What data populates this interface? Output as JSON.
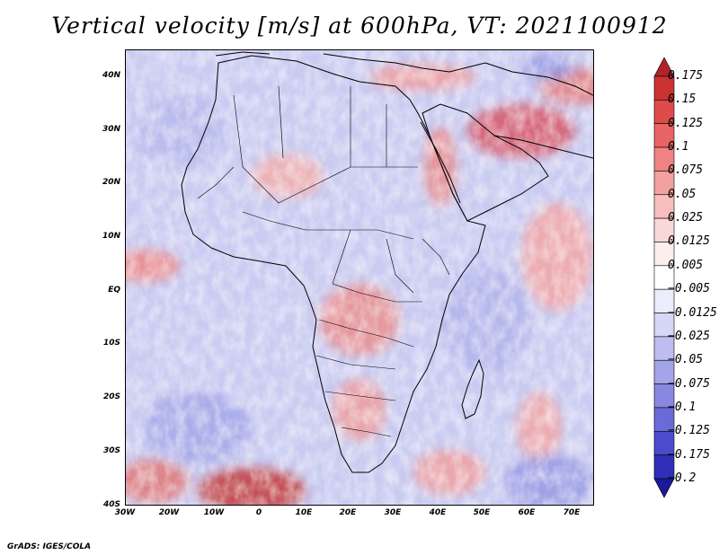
{
  "title": "Vertical velocity [m/s] at 600hPa, VT: 2021100912",
  "credit": "GrADS: IGES/COLA",
  "map": {
    "lon_range": [
      -30,
      75
    ],
    "lat_range": [
      -40,
      45
    ],
    "lat_ticks": [
      {
        "value": 40,
        "label": "40N"
      },
      {
        "value": 30,
        "label": "30N"
      },
      {
        "value": 20,
        "label": "20N"
      },
      {
        "value": 10,
        "label": "10N"
      },
      {
        "value": 0,
        "label": "EQ"
      },
      {
        "value": -10,
        "label": "10S"
      },
      {
        "value": -20,
        "label": "20S"
      },
      {
        "value": -30,
        "label": "30S"
      },
      {
        "value": -40,
        "label": "40S"
      }
    ],
    "lon_ticks": [
      {
        "value": -30,
        "label": "30W"
      },
      {
        "value": -20,
        "label": "20W"
      },
      {
        "value": -10,
        "label": "10W"
      },
      {
        "value": 0,
        "label": "0"
      },
      {
        "value": 10,
        "label": "10E"
      },
      {
        "value": 20,
        "label": "20E"
      },
      {
        "value": 30,
        "label": "30E"
      },
      {
        "value": 40,
        "label": "40E"
      },
      {
        "value": 50,
        "label": "50E"
      },
      {
        "value": 60,
        "label": "60E"
      },
      {
        "value": 70,
        "label": "70E"
      }
    ]
  },
  "colorbar": {
    "levels": [
      "0.175",
      "0.15",
      "0.125",
      "0.1",
      "0.075",
      "0.05",
      "0.025",
      "0.0125",
      "0.005",
      "−0.005",
      "−0.0125",
      "−0.025",
      "−0.05",
      "−0.075",
      "−0.1",
      "−0.125",
      "−0.175",
      "−0.2"
    ],
    "colors": [
      "#b0222a",
      "#cc3232",
      "#de4b4b",
      "#e96464",
      "#ef8282",
      "#f3a0a0",
      "#f7bebe",
      "#fad8d8",
      "#fdeeee",
      "#ffffff",
      "#ececfb",
      "#d6d6f6",
      "#bdbdf0",
      "#a4a4ea",
      "#8888e2",
      "#6a6ad8",
      "#4b4bcc",
      "#2f2fb8",
      "#1a1a9a"
    ]
  }
}
